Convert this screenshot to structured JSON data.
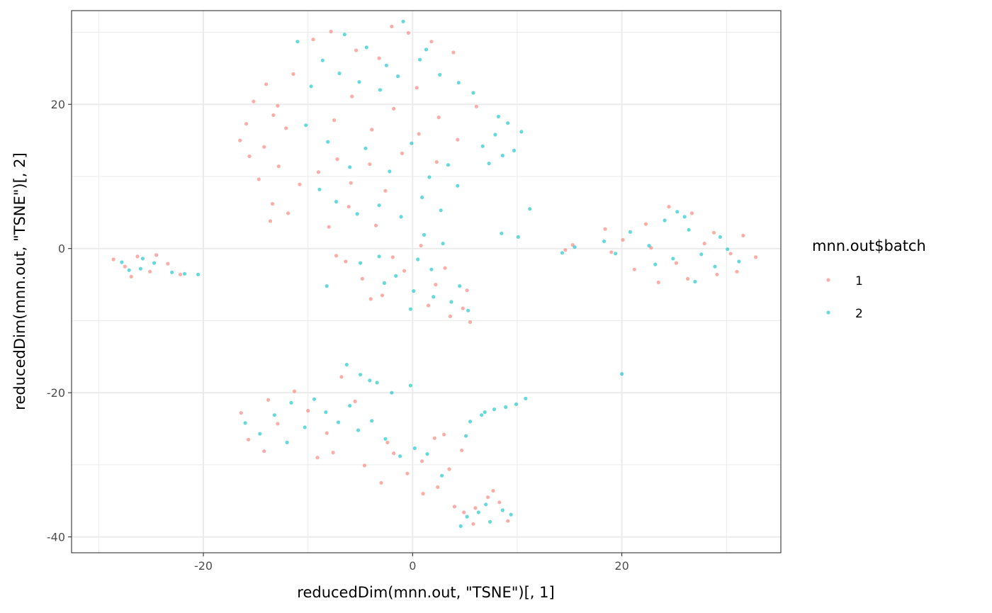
{
  "chart_data": {
    "type": "scatter",
    "xlabel": "reducedDim(mnn.out, \"TSNE\")[, 1]",
    "ylabel": "reducedDim(mnn.out, \"TSNE\")[, 2]",
    "xlim": [
      -32.6,
      35.2
    ],
    "ylim": [
      -42.2,
      33.0
    ],
    "x_ticks": [
      -20,
      0,
      20
    ],
    "y_ticks": [
      -40,
      -20,
      0,
      20
    ],
    "x_tick_labels": [
      "-20",
      "0",
      "20"
    ],
    "y_tick_labels": [
      "-40",
      "-20",
      "0",
      "20"
    ],
    "grid": true,
    "legend": {
      "title": "mnn.out$batch",
      "position": "right"
    },
    "series": [
      {
        "name": "1",
        "color": "#F8766D",
        "points": [
          [
            -27.5,
            -2.5
          ],
          [
            -26.3,
            -1.1
          ],
          [
            -25.1,
            -3.2
          ],
          [
            -23.4,
            -2.1
          ],
          [
            -22.2,
            -3.6
          ],
          [
            -28.6,
            -1.5
          ],
          [
            -26.9,
            -3.9
          ],
          [
            -24.5,
            -0.9
          ],
          [
            -16.5,
            15.0
          ],
          [
            -15.2,
            20.4
          ],
          [
            -14.0,
            22.8
          ],
          [
            -13.3,
            18.5
          ],
          [
            -15.6,
            12.8
          ],
          [
            -14.7,
            9.6
          ],
          [
            -13.4,
            6.2
          ],
          [
            -12.8,
            11.4
          ],
          [
            -12.1,
            16.7
          ],
          [
            -11.4,
            24.2
          ],
          [
            -10.8,
            8.9
          ],
          [
            -15.9,
            17.3
          ],
          [
            -14.2,
            14.1
          ],
          [
            -12.9,
            19.8
          ],
          [
            -13.6,
            3.8
          ],
          [
            -11.9,
            4.9
          ],
          [
            -9.5,
            29.0
          ],
          [
            -7.8,
            30.1
          ],
          [
            -5.4,
            27.5
          ],
          [
            -3.2,
            26.4
          ],
          [
            -2.0,
            30.8
          ],
          [
            -0.4,
            29.9
          ],
          [
            1.8,
            28.7
          ],
          [
            3.9,
            27.2
          ],
          [
            -9.0,
            10.6
          ],
          [
            -7.2,
            12.4
          ],
          [
            -5.9,
            9.1
          ],
          [
            -4.1,
            11.7
          ],
          [
            -2.6,
            8.0
          ],
          [
            -1.0,
            13.2
          ],
          [
            0.6,
            15.9
          ],
          [
            2.3,
            12.0
          ],
          [
            -7.5,
            17.8
          ],
          [
            -5.8,
            21.1
          ],
          [
            -3.9,
            16.5
          ],
          [
            -1.8,
            19.4
          ],
          [
            0.4,
            22.3
          ],
          [
            2.5,
            18.2
          ],
          [
            4.3,
            15.1
          ],
          [
            6.1,
            19.7
          ],
          [
            -6.4,
            -1.8
          ],
          [
            -4.8,
            -4.2
          ],
          [
            -2.9,
            -6.5
          ],
          [
            -0.8,
            -3.1
          ],
          [
            1.5,
            -7.9
          ],
          [
            3.6,
            -9.4
          ],
          [
            5.2,
            -5.8
          ],
          [
            5.5,
            -10.2
          ],
          [
            -1.9,
            -1.2
          ],
          [
            0.8,
            0.4
          ],
          [
            3.1,
            -2.7
          ],
          [
            4.8,
            -8.3
          ],
          [
            -4.0,
            -7.0
          ],
          [
            2.2,
            -5.0
          ],
          [
            -8.0,
            3.0
          ],
          [
            -6.1,
            5.8
          ],
          [
            -3.5,
            3.2
          ],
          [
            -7.3,
            -1.0
          ],
          [
            15.3,
            0.5
          ],
          [
            14.6,
            -0.2
          ],
          [
            18.4,
            2.7
          ],
          [
            20.1,
            1.2
          ],
          [
            22.3,
            3.4
          ],
          [
            24.5,
            5.8
          ],
          [
            26.7,
            4.9
          ],
          [
            28.8,
            2.2
          ],
          [
            30.4,
            -0.7
          ],
          [
            31.6,
            1.8
          ],
          [
            32.8,
            -1.2
          ],
          [
            29.1,
            -3.6
          ],
          [
            26.3,
            -4.2
          ],
          [
            23.5,
            -4.7
          ],
          [
            21.2,
            -2.9
          ],
          [
            19.0,
            -0.5
          ],
          [
            25.2,
            -2.0
          ],
          [
            27.9,
            0.7
          ],
          [
            31.0,
            -3.2
          ],
          [
            22.8,
            0.1
          ],
          [
            -16.4,
            -22.8
          ],
          [
            -15.7,
            -26.5
          ],
          [
            -14.2,
            -28.1
          ],
          [
            -12.9,
            -24.3
          ],
          [
            -11.3,
            -19.8
          ],
          [
            -10.0,
            -22.5
          ],
          [
            -9.1,
            -29.0
          ],
          [
            -7.6,
            -28.3
          ],
          [
            -6.8,
            -17.8
          ],
          [
            -5.5,
            -21.2
          ],
          [
            -4.6,
            -30.1
          ],
          [
            -3.0,
            -32.5
          ],
          [
            -1.8,
            -28.4
          ],
          [
            -0.5,
            -31.2
          ],
          [
            0.9,
            -29.5
          ],
          [
            2.4,
            -33.1
          ],
          [
            3.5,
            -30.6
          ],
          [
            4.7,
            -28.0
          ],
          [
            3.0,
            -25.8
          ],
          [
            2.1,
            -26.3
          ],
          [
            1.0,
            -34.0
          ],
          [
            -13.8,
            -21.0
          ],
          [
            -8.2,
            -25.6
          ],
          [
            -2.4,
            -26.9
          ],
          [
            4.0,
            -35.8
          ],
          [
            6.0,
            -36.0
          ],
          [
            7.2,
            -34.5
          ],
          [
            8.3,
            -35.2
          ],
          [
            9.1,
            -37.8
          ],
          [
            5.8,
            -38.2
          ],
          [
            7.7,
            -33.6
          ],
          [
            4.9,
            -36.6
          ]
        ]
      },
      {
        "name": "2",
        "color": "#00BFC4",
        "points": [
          [
            -27.8,
            -1.9
          ],
          [
            -26.0,
            -2.8
          ],
          [
            -24.7,
            -2.0
          ],
          [
            -23.0,
            -3.3
          ],
          [
            -21.8,
            -3.5
          ],
          [
            -20.5,
            -3.6
          ],
          [
            -25.8,
            -1.4
          ],
          [
            -27.1,
            -3.0
          ],
          [
            -11.0,
            28.7
          ],
          [
            -8.6,
            26.1
          ],
          [
            -6.5,
            29.7
          ],
          [
            -4.4,
            27.9
          ],
          [
            -2.5,
            25.4
          ],
          [
            -0.9,
            31.5
          ],
          [
            0.7,
            26.2
          ],
          [
            2.6,
            24.1
          ],
          [
            4.4,
            23.0
          ],
          [
            5.8,
            21.6
          ],
          [
            -9.7,
            22.5
          ],
          [
            -7.0,
            24.3
          ],
          [
            -5.1,
            23.1
          ],
          [
            -3.1,
            22.0
          ],
          [
            -1.4,
            23.9
          ],
          [
            1.3,
            27.6
          ],
          [
            -10.2,
            17.1
          ],
          [
            -8.1,
            14.8
          ],
          [
            -6.0,
            11.3
          ],
          [
            -4.5,
            13.9
          ],
          [
            -2.2,
            10.7
          ],
          [
            -0.1,
            14.6
          ],
          [
            1.6,
            9.9
          ],
          [
            3.4,
            11.6
          ],
          [
            -8.9,
            8.2
          ],
          [
            -7.3,
            6.5
          ],
          [
            -5.3,
            4.8
          ],
          [
            -3.2,
            6.0
          ],
          [
            -1.1,
            4.4
          ],
          [
            0.9,
            7.1
          ],
          [
            2.7,
            5.3
          ],
          [
            4.3,
            8.7
          ],
          [
            6.7,
            14.2
          ],
          [
            7.9,
            15.8
          ],
          [
            8.6,
            12.9
          ],
          [
            9.7,
            13.6
          ],
          [
            10.4,
            16.2
          ],
          [
            7.3,
            11.8
          ],
          [
            9.1,
            17.4
          ],
          [
            8.2,
            18.3
          ],
          [
            -5.0,
            -2.0
          ],
          [
            -3.2,
            -1.1
          ],
          [
            -1.6,
            -3.8
          ],
          [
            0.5,
            -1.5
          ],
          [
            1.8,
            -2.9
          ],
          [
            2.9,
            0.7
          ],
          [
            0.1,
            -5.9
          ],
          [
            2.0,
            -6.7
          ],
          [
            3.7,
            -7.4
          ],
          [
            4.5,
            -5.2
          ],
          [
            5.3,
            -8.6
          ],
          [
            -2.7,
            -4.8
          ],
          [
            1.1,
            1.9
          ],
          [
            -0.2,
            -8.4
          ],
          [
            8.5,
            2.1
          ],
          [
            10.1,
            1.6
          ],
          [
            11.2,
            5.5
          ],
          [
            14.3,
            -0.6
          ],
          [
            15.5,
            0.2
          ],
          [
            18.3,
            1.0
          ],
          [
            19.4,
            -0.7
          ],
          [
            20.8,
            2.3
          ],
          [
            22.6,
            0.4
          ],
          [
            24.1,
            3.9
          ],
          [
            25.3,
            5.1
          ],
          [
            26.4,
            2.6
          ],
          [
            27.6,
            -0.8
          ],
          [
            28.9,
            -2.5
          ],
          [
            30.1,
            -0.1
          ],
          [
            31.2,
            -1.8
          ],
          [
            29.4,
            1.6
          ],
          [
            24.9,
            -1.4
          ],
          [
            23.2,
            -2.2
          ],
          [
            27.0,
            -4.6
          ],
          [
            26.0,
            4.4
          ],
          [
            -16.0,
            -24.2
          ],
          [
            -14.6,
            -25.7
          ],
          [
            -13.2,
            -23.1
          ],
          [
            -11.6,
            -21.4
          ],
          [
            -10.3,
            -24.8
          ],
          [
            -9.4,
            -20.9
          ],
          [
            -8.3,
            -22.7
          ],
          [
            -7.1,
            -24.1
          ],
          [
            -6.0,
            -21.8
          ],
          [
            -5.2,
            -25.2
          ],
          [
            -3.9,
            -23.9
          ],
          [
            -2.6,
            -26.4
          ],
          [
            -1.2,
            -28.8
          ],
          [
            0.2,
            -27.7
          ],
          [
            1.4,
            -28.5
          ],
          [
            2.8,
            -31.5
          ],
          [
            -6.3,
            -16.1
          ],
          [
            -5.0,
            -17.5
          ],
          [
            -4.1,
            -18.3
          ],
          [
            -3.4,
            -18.6
          ],
          [
            -12.0,
            -26.9
          ],
          [
            -2.0,
            -20.0
          ],
          [
            -0.2,
            -19.0
          ],
          [
            5.5,
            -24.0
          ],
          [
            6.6,
            -23.1
          ],
          [
            7.8,
            -22.3
          ],
          [
            8.9,
            -22.0
          ],
          [
            9.9,
            -21.6
          ],
          [
            10.8,
            -20.8
          ],
          [
            5.1,
            -26.0
          ],
          [
            6.9,
            -22.7
          ],
          [
            5.2,
            -37.2
          ],
          [
            6.3,
            -36.6
          ],
          [
            7.4,
            -37.9
          ],
          [
            8.6,
            -36.3
          ],
          [
            9.4,
            -36.9
          ],
          [
            4.6,
            -38.5
          ],
          [
            7.0,
            -35.5
          ],
          [
            20.0,
            -17.4
          ],
          [
            -8.2,
            -5.2
          ]
        ]
      }
    ]
  }
}
